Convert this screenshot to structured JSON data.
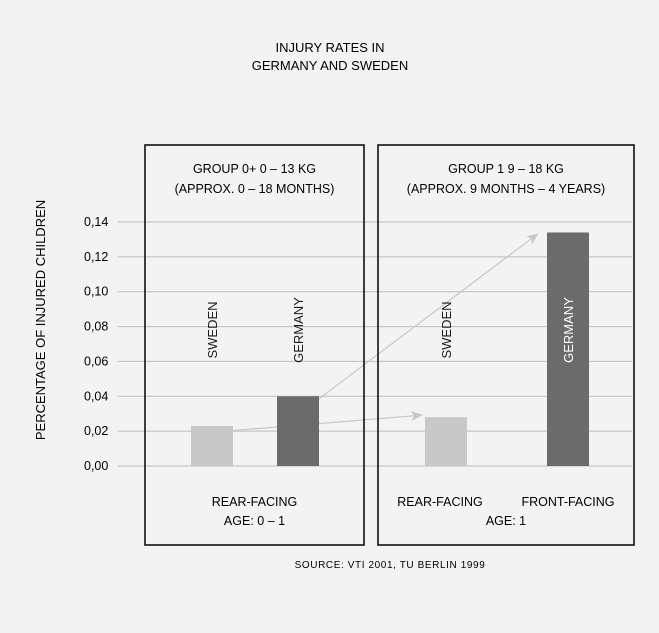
{
  "chart_data": {
    "type": "bar",
    "title": "INJURY RATES IN\nGERMANY AND SWEDEN",
    "ylabel": "PERCENTAGE OF INJURED CHILDREN",
    "ylim": [
      0,
      0.14
    ],
    "y_ticks": [
      {
        "value": 0.0,
        "label": "0,00"
      },
      {
        "value": 0.02,
        "label": "0,02"
      },
      {
        "value": 0.04,
        "label": "0,04"
      },
      {
        "value": 0.06,
        "label": "0,06"
      },
      {
        "value": 0.08,
        "label": "0,08"
      },
      {
        "value": 0.1,
        "label": "0,10"
      },
      {
        "value": 0.12,
        "label": "0,12"
      },
      {
        "value": 0.14,
        "label": "0,14"
      }
    ],
    "grid": true,
    "groups": [
      {
        "title_line1": "GROUP 0+ 0 – 13 KG",
        "title_line2": "(APPROX. 0 – 18 MONTHS)",
        "footer_line1": "REAR-FACING",
        "footer_line2": "AGE: 0 – 1",
        "bars": [
          {
            "label": "SWEDEN",
            "value": 0.023,
            "color": "#c8c8c8",
            "label_color": "#1a1a1a"
          },
          {
            "label": "GERMANY",
            "value": 0.04,
            "color": "#6b6b6b",
            "label_color": "#1a1a1a"
          }
        ]
      },
      {
        "title_line1": "GROUP 1 9 – 18 KG",
        "title_line2": "(APPROX. 9 MONTHS – 4 YEARS)",
        "footer_line1": "REAR-FACING",
        "footer_line2": "AGE: 1",
        "footer_extra": "FRONT-FACING",
        "bars": [
          {
            "label": "SWEDEN",
            "value": 0.028,
            "color": "#c8c8c8",
            "label_color": "#1a1a1a"
          },
          {
            "label": "GERMANY",
            "value": 0.134,
            "color": "#6b6b6b",
            "label_color": "#ffffff"
          }
        ]
      }
    ],
    "source": "SOURCE: VTI 2001, TU BERLIN 1999",
    "arrow_color": "#c8c8c8",
    "grid_color": "#bdbdbd",
    "frame_color": "#111111"
  }
}
